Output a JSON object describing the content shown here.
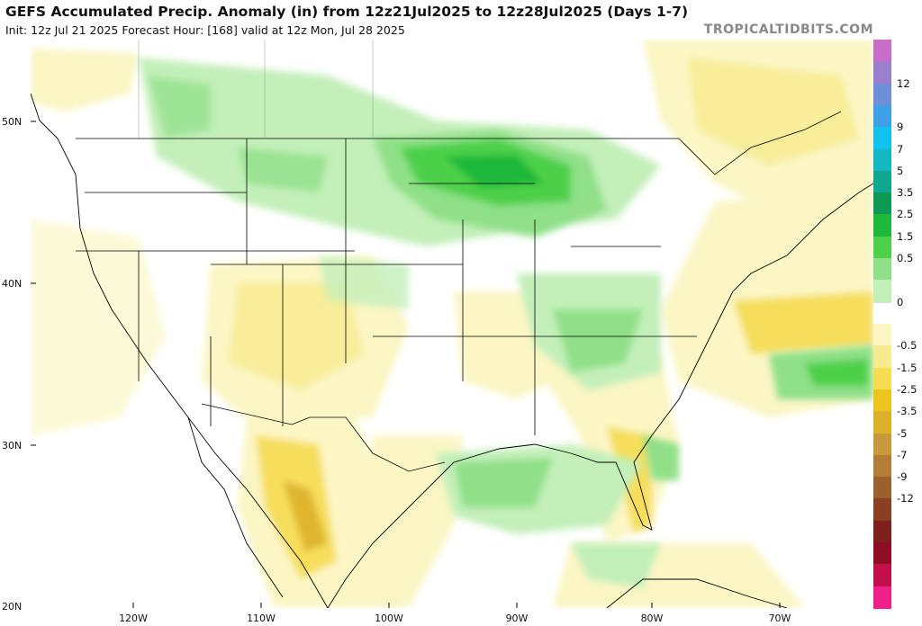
{
  "header": {
    "title": "GEFS Accumulated Precip. Anomaly (in) from 12z21Jul2025 to 12z28Jul2025 (Days 1-7)",
    "subtitle": "Init: 12z Jul 21 2025   Forecast Hour: [168]   valid at 12z Mon, Jul 28 2025",
    "site": "TROPICALTIDBITS.COM"
  },
  "axes": {
    "lat_labels": [
      "50N",
      "40N",
      "30N",
      "20N"
    ],
    "lon_labels": [
      "120W",
      "110W",
      "100W",
      "90W",
      "80W",
      "70W"
    ]
  },
  "colorbar": {
    "labels": [
      "12",
      "9",
      "7",
      "5",
      "3.5",
      "2.5",
      "1.5",
      "0.5",
      "0",
      "-0.5",
      "-1.5",
      "-2.5",
      "-3.5",
      "-5",
      "-7",
      "-9",
      "-12"
    ],
    "colors": [
      "#c86ec8",
      "#9a7fcf",
      "#6f8fd8",
      "#3fa0e6",
      "#12c2ee",
      "#14b8c2",
      "#11a690",
      "#0e9a55",
      "#1eb83a",
      "#4ed04a",
      "#8fe088",
      "#c3efb9",
      "#ffffff",
      "#fbf6c4",
      "#f8eb8f",
      "#f5dc50",
      "#eec421",
      "#ddb02a",
      "#c8983c",
      "#b37d38",
      "#9c5f2e",
      "#8a3f25",
      "#7e1f1b",
      "#8e0d25",
      "#c20f4a",
      "#f0208a"
    ]
  }
}
